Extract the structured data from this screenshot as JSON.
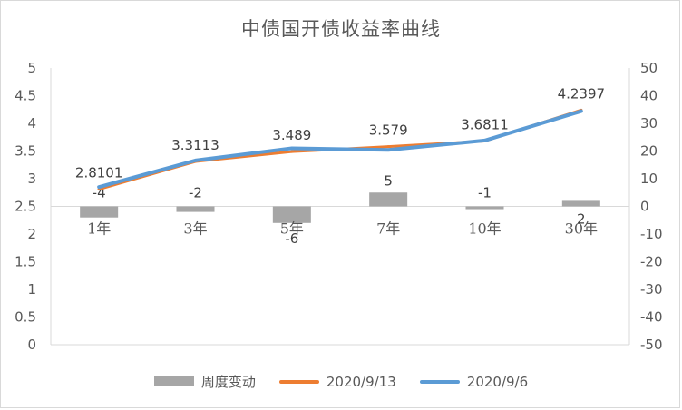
{
  "chart_data": {
    "type": "bar+line",
    "title": "中债国开债收益率曲线",
    "categories": [
      "1年",
      "3年",
      "5年",
      "7年",
      "10年",
      "30年"
    ],
    "bar_series": {
      "name": "周度变动",
      "values": [
        -4,
        -2,
        -6,
        5,
        -1,
        2
      ],
      "labels": [
        "-4",
        "-2",
        "-6",
        "5",
        "-1",
        "2"
      ],
      "axis": "right",
      "color": "#a6a6a6"
    },
    "line_series": [
      {
        "name": "2020/9/13",
        "values": [
          2.8101,
          3.3113,
          3.489,
          3.579,
          3.6811,
          4.2397
        ],
        "labels": [
          "2.8101",
          "3.3113",
          "3.489",
          "3.579",
          "3.6811",
          "4.2397"
        ],
        "color": "#ed7d31"
      },
      {
        "name": "2020/9/6",
        "values": [
          2.85,
          3.33,
          3.55,
          3.52,
          3.69,
          4.22
        ],
        "color": "#5b9bd5"
      }
    ],
    "left_axis": {
      "min": 0,
      "max": 5,
      "step": 0.5,
      "tick_labels": [
        "0",
        "0.5",
        "1",
        "1.5",
        "2",
        "2.5",
        "3",
        "3.5",
        "4",
        "4.5",
        "5"
      ]
    },
    "right_axis": {
      "min": -50,
      "max": 50,
      "step": 10,
      "tick_labels": [
        "-50",
        "-40",
        "-30",
        "-20",
        "-10",
        "0",
        "10",
        "20",
        "30",
        "40",
        "50"
      ]
    },
    "grid": false,
    "legend_position": "bottom"
  },
  "legend": {
    "bar_label": "周度变动",
    "line1_label": "2020/9/13",
    "line2_label": "2020/9/6"
  },
  "colors": {
    "bar": "#a6a6a6",
    "line1": "#ed7d31",
    "line2": "#5b9bd5",
    "axis": "#d9d9d9",
    "text": "#595959"
  }
}
